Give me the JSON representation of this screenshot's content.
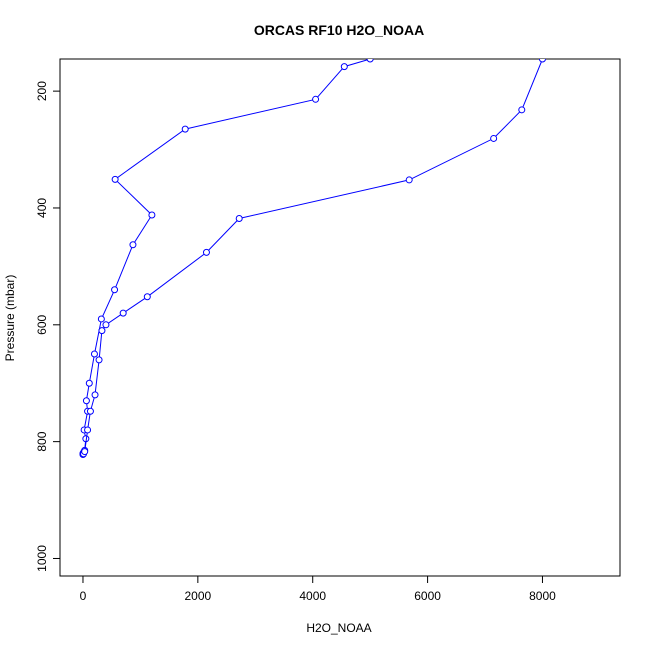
{
  "chart_data": {
    "type": "line",
    "title": "ORCAS RF10 H2O_NOAA",
    "xlabel": "H2O_NOAA",
    "ylabel": "Pressure (mbar)",
    "xlim": [
      -400,
      9350
    ],
    "ylim": [
      1030,
      145
    ],
    "y_inverted": true,
    "x_ticks": [
      0,
      2000,
      4000,
      6000,
      8000
    ],
    "y_ticks": [
      200,
      400,
      600,
      800,
      1000
    ],
    "grid": false,
    "legend": "none",
    "line_color": "#0000ff",
    "marker": "open-circle",
    "series": [
      {
        "x": [
          0,
          10,
          20,
          30,
          50,
          20,
          80,
          60,
          110,
          200,
          320,
          550,
          870,
          1200,
          560,
          1780,
          4050,
          4550,
          5000
        ],
        "y": [
          820,
          819,
          817,
          815,
          795,
          780,
          748,
          730,
          700,
          650,
          590,
          540,
          463,
          412,
          351,
          265,
          214,
          158,
          145
        ]
      },
      {
        "x": [
          0,
          10,
          30,
          80,
          130,
          210,
          280,
          330,
          400,
          700,
          1120,
          2150,
          2720,
          5680,
          7150,
          7640,
          8000
        ],
        "y": [
          822,
          821,
          817,
          780,
          748,
          720,
          660,
          610,
          600,
          580,
          552,
          476,
          418,
          352,
          281,
          232,
          145
        ]
      }
    ]
  }
}
